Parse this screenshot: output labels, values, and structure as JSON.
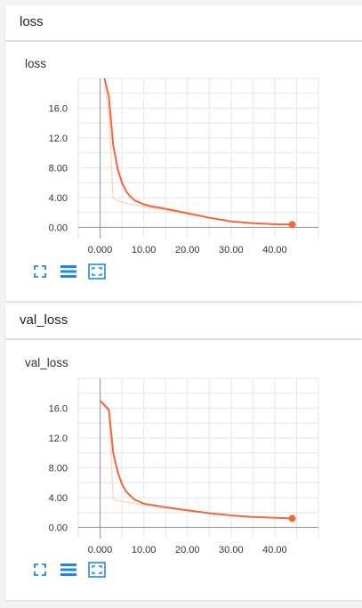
{
  "sections": [
    {
      "header": "loss",
      "title": "loss",
      "chart_data": {
        "type": "line",
        "xlim": [
          -5,
          50
        ],
        "ylim": [
          -1.5,
          20
        ],
        "xticks": [
          "0.000",
          "10.00",
          "20.00",
          "30.00",
          "40.00"
        ],
        "yticks": [
          "0.00",
          "4.00",
          "8.00",
          "12.0",
          "16.0"
        ],
        "xtick_values": [
          0,
          10,
          20,
          30,
          40
        ],
        "ytick_values": [
          0,
          4,
          8,
          12,
          16
        ],
        "grid": true,
        "series": [
          {
            "role": "raw",
            "color": "#fcd3c5",
            "x": [
              1,
              2,
              3,
              4,
              5,
              7,
              10,
              15,
              20,
              25,
              30,
              35,
              40,
              44
            ],
            "y": [
              19,
              15,
              3.9,
              3.6,
              3.4,
              3.1,
              2.8,
              2.3,
              1.8,
              1.3,
              0.8,
              0.55,
              0.42,
              0.35
            ]
          },
          {
            "role": "smoothed",
            "color": "#f4673a",
            "x": [
              1,
              2,
              3,
              4,
              5,
              6,
              7,
              8,
              10,
              12,
              15,
              20,
              25,
              30,
              35,
              40,
              44
            ],
            "y": [
              20,
              17.5,
              11,
              7.9,
              6.0,
              4.8,
              4.1,
              3.6,
              3.1,
              2.8,
              2.5,
              1.9,
              1.3,
              0.8,
              0.55,
              0.42,
              0.38
            ]
          }
        ],
        "last_point": {
          "x": 44,
          "y": 0.38
        }
      }
    },
    {
      "header": "val_loss",
      "title": "val_loss",
      "chart_data": {
        "type": "line",
        "xlim": [
          -5,
          50
        ],
        "ylim": [
          -1.5,
          20
        ],
        "xticks": [
          "0.000",
          "10.00",
          "20.00",
          "30.00",
          "40.00"
        ],
        "yticks": [
          "0.00",
          "4.00",
          "8.00",
          "12.0",
          "16.0"
        ],
        "xtick_values": [
          0,
          10,
          20,
          30,
          40
        ],
        "ytick_values": [
          0,
          4,
          8,
          12,
          16
        ],
        "grid": true,
        "series": [
          {
            "role": "raw",
            "color": "#fcd3c5",
            "x": [
              0,
              2,
              3,
              4,
              5,
              7,
              10,
              15,
              20,
              25,
              30,
              35,
              40,
              44
            ],
            "y": [
              17,
              15.5,
              3.8,
              3.6,
              3.5,
              3.3,
              3.0,
              2.6,
              2.2,
              1.9,
              1.6,
              1.4,
              1.3,
              1.2
            ]
          },
          {
            "role": "smoothed",
            "color": "#f4673a",
            "x": [
              0,
              2,
              3,
              4,
              5,
              6,
              7,
              8,
              10,
              12,
              15,
              20,
              25,
              30,
              35,
              40,
              44
            ],
            "y": [
              17,
              15.8,
              10,
              7.5,
              5.8,
              4.8,
              4.2,
              3.7,
              3.2,
              3.0,
              2.7,
              2.3,
              1.9,
              1.6,
              1.4,
              1.3,
              1.2
            ]
          }
        ],
        "last_point": {
          "x": 44,
          "y": 1.2
        }
      }
    }
  ],
  "toolbar": {
    "icons": [
      "expand-icon",
      "data-list-icon",
      "fit-domain-icon"
    ],
    "color": "#1e88e5"
  }
}
